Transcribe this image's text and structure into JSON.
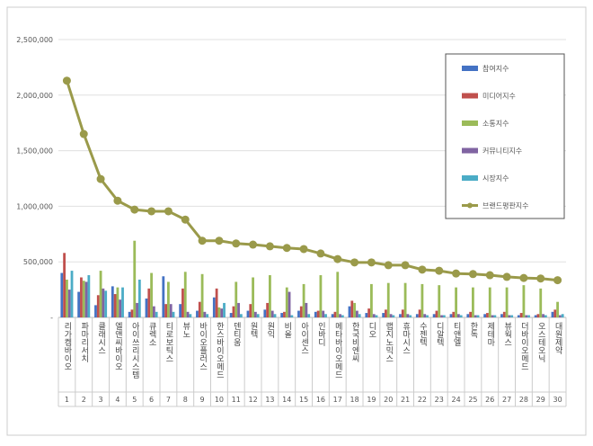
{
  "chart_data": {
    "type": "bar_line",
    "categories": [
      "리가켐바이오",
      "파마리서치",
      "클래시스",
      "엘앤씨바이오",
      "아이쓰리시스템",
      "큐렉소",
      "티로보틱스",
      "뷰노",
      "바이오플러스",
      "한스바이오메드",
      "덴티움",
      "원텍",
      "원익",
      "비올",
      "아이센스",
      "인바디",
      "메타바이오메드",
      "한국비엔씨",
      "디오",
      "랩지노믹스",
      "휴마시스",
      "수젠텍",
      "디알텍",
      "티앤엘",
      "한독",
      "제테마",
      "뷰웍스",
      "더바이오메드",
      "오스테오닉",
      "대원제약"
    ],
    "ranks": [
      "1",
      "2",
      "3",
      "4",
      "5",
      "6",
      "7",
      "8",
      "9",
      "10",
      "11",
      "12",
      "13",
      "14",
      "15",
      "16",
      "17",
      "18",
      "19",
      "20",
      "21",
      "22",
      "23",
      "24",
      "25",
      "26",
      "27",
      "28",
      "29",
      "30"
    ],
    "ylim": [
      0,
      2500000
    ],
    "yticks": [
      {
        "value": 0,
        "label": "-"
      },
      {
        "value": 500000,
        "label": "500,000"
      },
      {
        "value": 1000000,
        "label": "1,000,000"
      },
      {
        "value": 1500000,
        "label": "1,500,000"
      },
      {
        "value": 2000000,
        "label": "2,000,000"
      },
      {
        "value": 2500000,
        "label": "2,500,000"
      }
    ],
    "grid": true,
    "series": [
      {
        "name": "참여지수",
        "color": "#4472c4",
        "kind": "bar",
        "values": [
          400000,
          230000,
          110000,
          280000,
          50000,
          170000,
          370000,
          120000,
          60000,
          180000,
          40000,
          60000,
          70000,
          40000,
          60000,
          50000,
          30000,
          100000,
          40000,
          40000,
          30000,
          30000,
          30000,
          30000,
          30000,
          30000,
          30000,
          20000,
          20000,
          50000
        ]
      },
      {
        "name": "미디어지수",
        "color": "#c0504d",
        "kind": "bar",
        "values": [
          580000,
          360000,
          200000,
          210000,
          70000,
          260000,
          120000,
          260000,
          140000,
          260000,
          100000,
          120000,
          130000,
          50000,
          100000,
          60000,
          50000,
          150000,
          80000,
          70000,
          70000,
          70000,
          60000,
          50000,
          50000,
          40000,
          50000,
          40000,
          30000,
          70000
        ]
      },
      {
        "name": "소통지수",
        "color": "#9bbb59",
        "kind": "bar",
        "values": [
          340000,
          330000,
          420000,
          270000,
          690000,
          400000,
          320000,
          410000,
          390000,
          90000,
          320000,
          360000,
          380000,
          270000,
          300000,
          380000,
          410000,
          130000,
          300000,
          310000,
          310000,
          300000,
          290000,
          270000,
          270000,
          270000,
          270000,
          290000,
          260000,
          140000
        ]
      },
      {
        "name": "커뮤니티지수",
        "color": "#8064a2",
        "kind": "bar",
        "values": [
          250000,
          320000,
          260000,
          160000,
          130000,
          100000,
          120000,
          50000,
          50000,
          80000,
          130000,
          50000,
          60000,
          230000,
          130000,
          60000,
          30000,
          60000,
          30000,
          30000,
          30000,
          30000,
          20000,
          30000,
          20000,
          20000,
          20000,
          20000,
          30000,
          20000
        ]
      },
      {
        "name": "시장지수",
        "color": "#4bacc6",
        "kind": "bar",
        "values": [
          420000,
          380000,
          240000,
          270000,
          340000,
          50000,
          50000,
          30000,
          30000,
          130000,
          30000,
          30000,
          30000,
          20000,
          30000,
          30000,
          20000,
          30000,
          20000,
          20000,
          20000,
          20000,
          20000,
          20000,
          20000,
          20000,
          20000,
          20000,
          20000,
          30000
        ]
      },
      {
        "name": "브랜드평판지수",
        "color": "#9a9a4a",
        "kind": "line",
        "values": [
          2130000,
          1650000,
          1245000,
          1050000,
          970000,
          955000,
          955000,
          880000,
          690000,
          690000,
          665000,
          655000,
          640000,
          625000,
          615000,
          575000,
          525000,
          495000,
          495000,
          470000,
          470000,
          430000,
          420000,
          395000,
          390000,
          380000,
          365000,
          355000,
          350000,
          335000
        ]
      }
    ]
  }
}
